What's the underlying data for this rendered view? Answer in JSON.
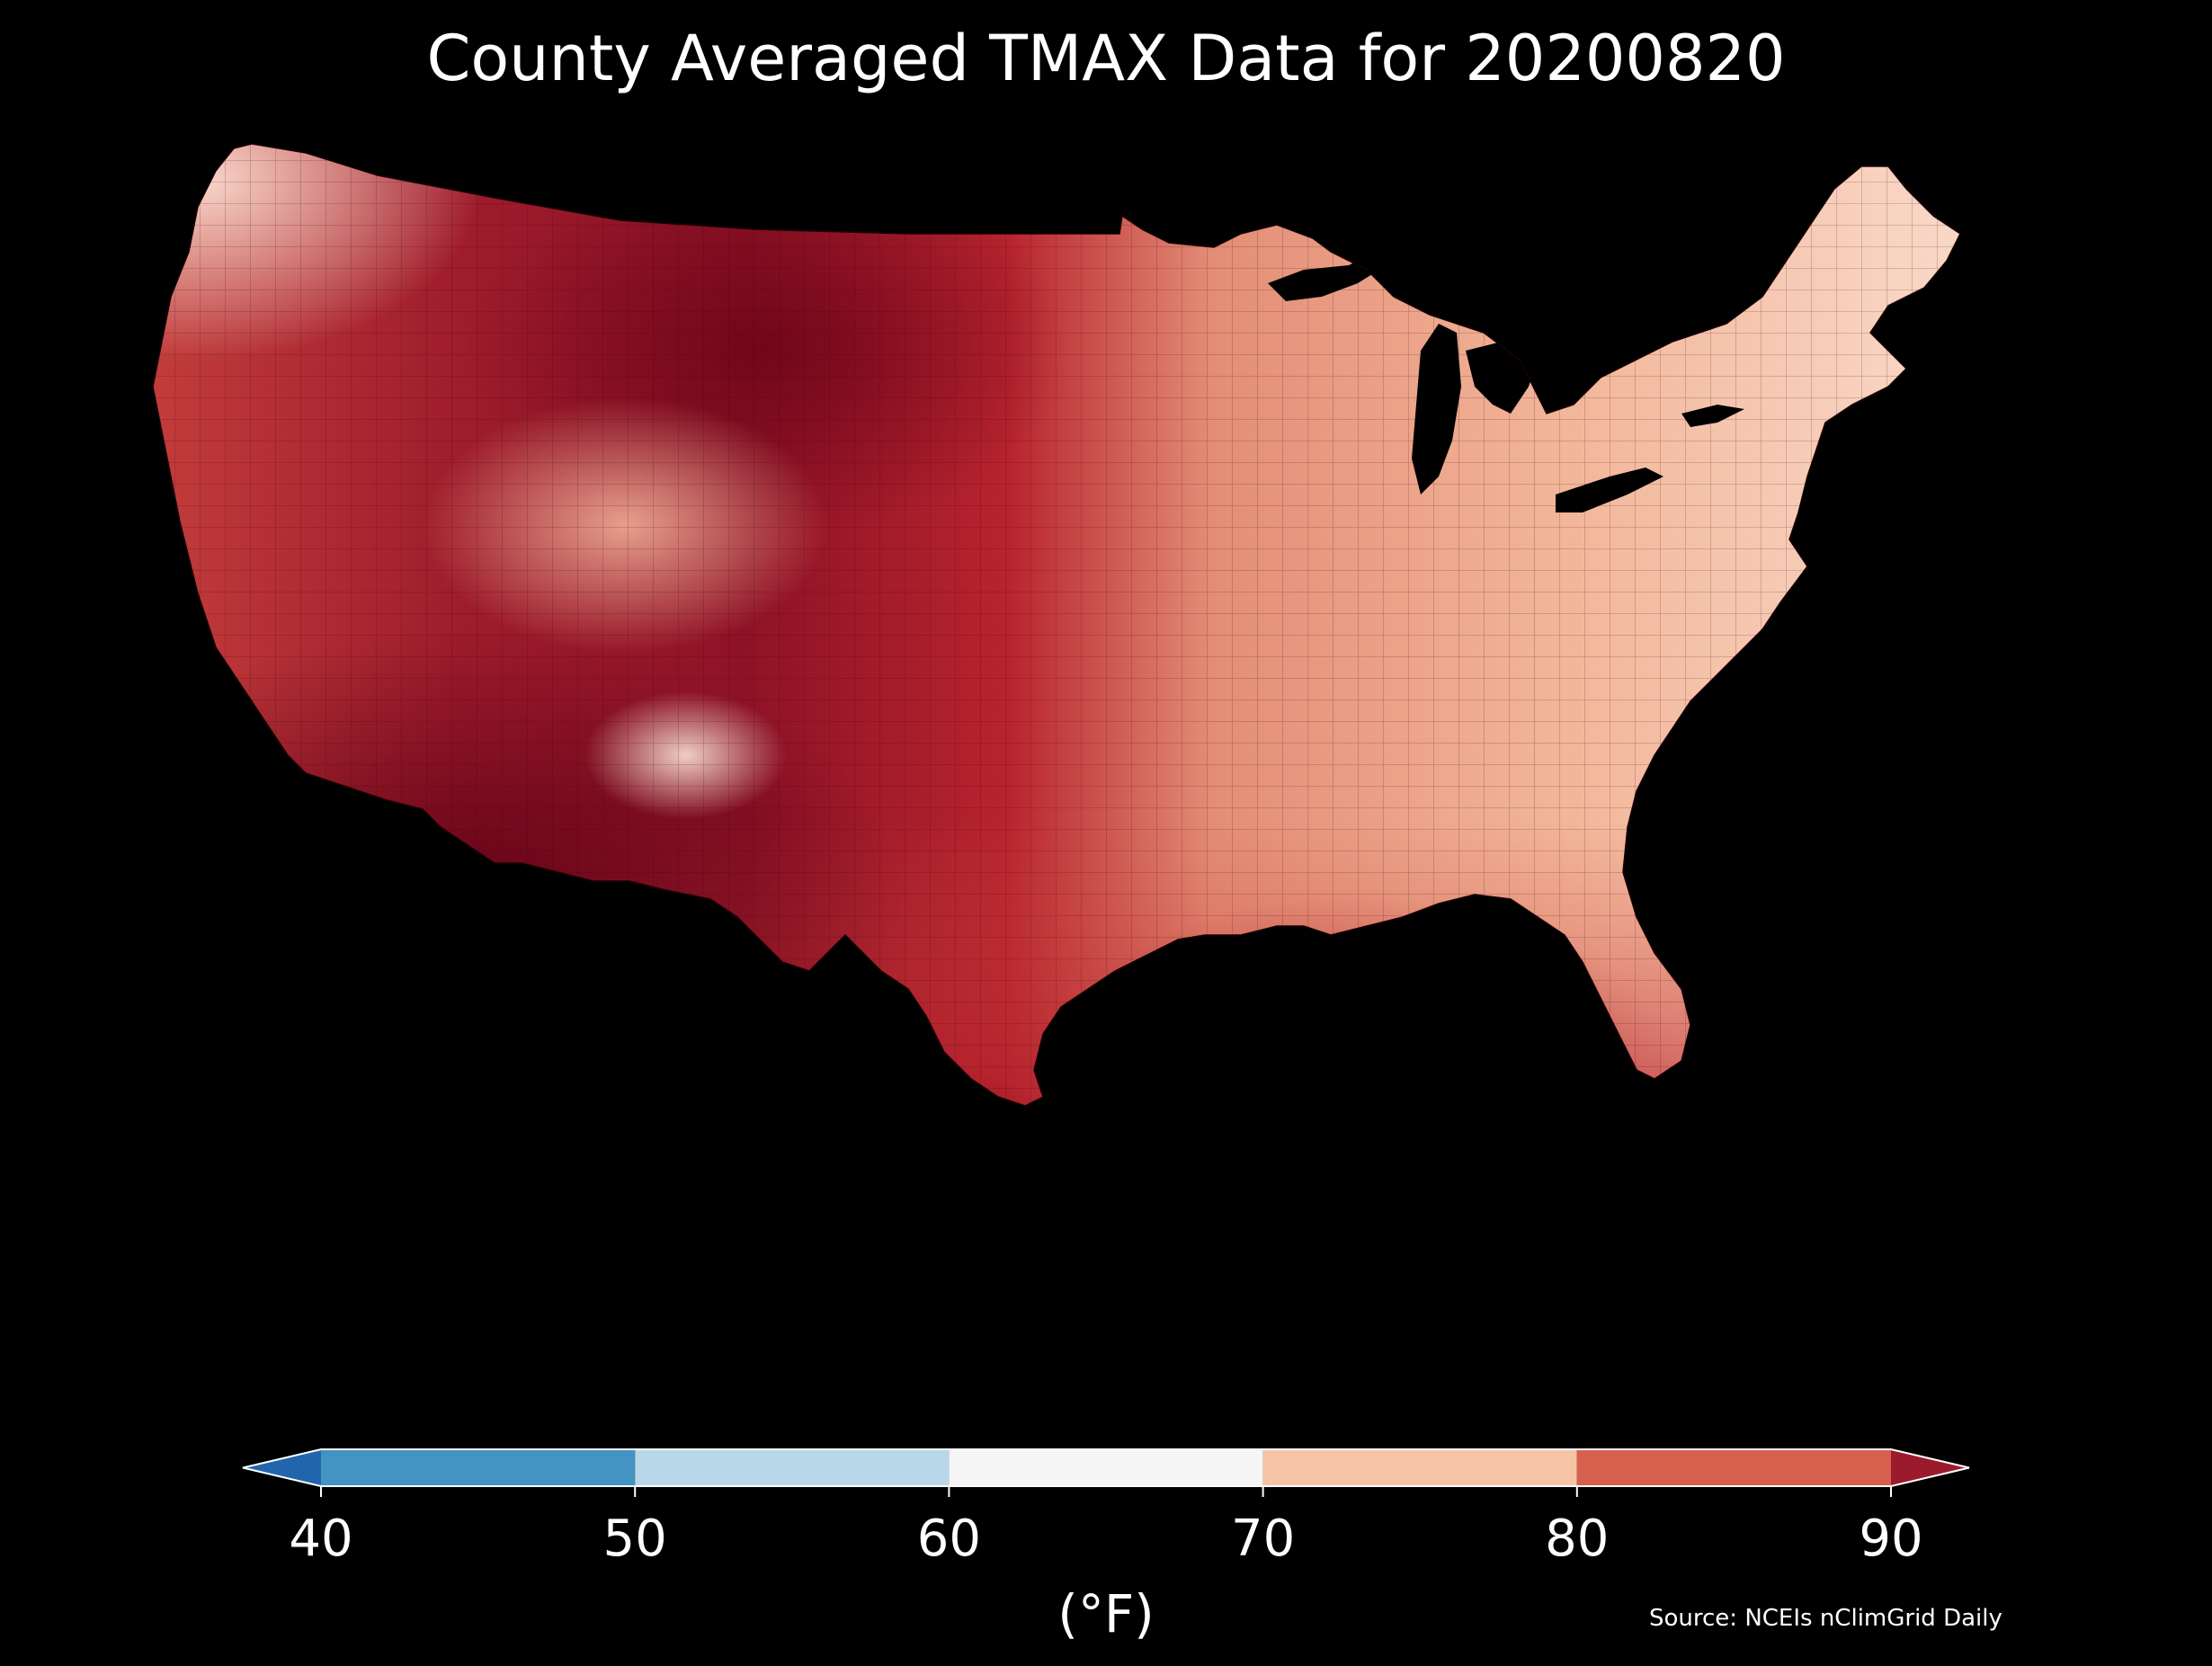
{
  "title": "County Averaged TMAX Data for 20200820",
  "colorbar": {
    "unit_label": "(°F)",
    "ticks": [
      "40",
      "50",
      "60",
      "70",
      "80",
      "90"
    ],
    "tick_values": [
      40,
      50,
      60,
      70,
      80,
      90
    ],
    "extend": "both",
    "bins": [
      {
        "from": null,
        "to": 40,
        "color": "#2166ac"
      },
      {
        "from": 40,
        "to": 50,
        "color": "#4393c3"
      },
      {
        "from": 50,
        "to": 60,
        "color": "#b8d8ea"
      },
      {
        "from": 60,
        "to": 70,
        "color": "#f5f5f5"
      },
      {
        "from": 70,
        "to": 80,
        "color": "#f7c3a6"
      },
      {
        "from": 80,
        "to": 90,
        "color": "#d6604d"
      },
      {
        "from": 90,
        "to": null,
        "color": "#9b1a2e"
      }
    ]
  },
  "source": "Source: NCEIs nClimGrid Daily",
  "map": {
    "region": "Contiguous United States, county level",
    "land_gradient_colors": [
      "#5e0016",
      "#8a0f25",
      "#b8242e",
      "#d6604d",
      "#e9917a",
      "#f5b89e",
      "#fbe0d2"
    ],
    "background": "#000000"
  }
}
